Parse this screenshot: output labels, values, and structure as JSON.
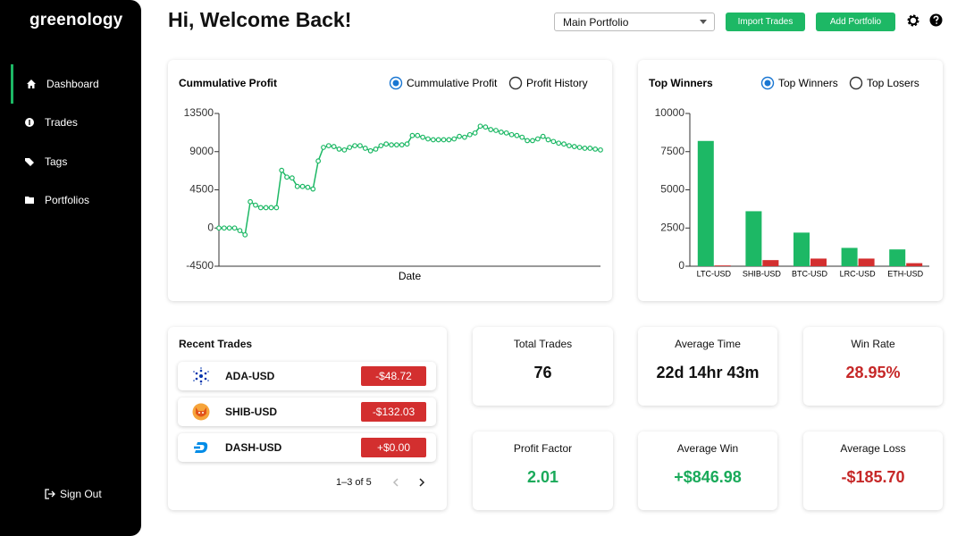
{
  "sidebar": {
    "brand": "greenology",
    "nav": [
      "Dashboard",
      "Trades",
      "Tags",
      "Portfolios"
    ],
    "active": 0,
    "sign_out": "Sign Out"
  },
  "header": {
    "title": "Hi, Welcome Back!",
    "portfolio_select": "Main Portfolio",
    "buttons": [
      "Import Trades",
      "Add Portfolio"
    ]
  },
  "chart_data": [
    {
      "type": "line",
      "title": "Cummulative Profit",
      "options": [
        "Cummulative Profit",
        "Profit History"
      ],
      "selected": 0,
      "xlabel": "Date",
      "color": "#1db865",
      "values": [
        0,
        0,
        0,
        0,
        -300,
        -800,
        3100,
        2700,
        2400,
        2400,
        2400,
        2400,
        6800,
        6000,
        5900,
        4900,
        4900,
        4800,
        4600,
        7900,
        9500,
        9700,
        9600,
        9300,
        9200,
        9500,
        9700,
        9700,
        9400,
        9100,
        9300,
        9700,
        9900,
        9800,
        9800,
        9800,
        9900,
        10900,
        10900,
        10700,
        10500,
        10400,
        10400,
        10400,
        10400,
        10500,
        10800,
        10700,
        11000,
        11200,
        12000,
        11900,
        11600,
        11500,
        11300,
        11200,
        11000,
        10900,
        10700,
        10300,
        10300,
        10500,
        10800,
        10400,
        10200,
        10000,
        9900,
        9700,
        9600,
        9500,
        9400,
        9400,
        9300,
        9200
      ],
      "ylim": [
        -4500,
        13500
      ],
      "yticks": [
        -4500,
        0,
        4500,
        9000,
        13500
      ]
    },
    {
      "type": "bar",
      "title": "Top Winners",
      "selected": 0,
      "categories": [
        "LTC-USD",
        "SHIB-USD",
        "BTC-USD",
        "LRC-USD",
        "ETH-USD"
      ],
      "series": [
        {
          "name": "Top Winners",
          "color": "#1db865",
          "values": [
            8200,
            3600,
            2200,
            1200,
            1100
          ]
        },
        {
          "name": "Top Losers",
          "color": "#d32f2f",
          "values": [
            50,
            400,
            500,
            500,
            200
          ]
        }
      ],
      "ylim": [
        0,
        10000
      ],
      "yticks": [
        0,
        2500,
        5000,
        7500,
        10000
      ]
    }
  ],
  "recent_trades": {
    "title": "Recent Trades",
    "rows": [
      {
        "symbol": "ADA-USD",
        "amount": "-$48.72"
      },
      {
        "symbol": "SHIB-USD",
        "amount": "-$132.03"
      },
      {
        "symbol": "DASH-USD",
        "amount": "+$0.00"
      }
    ],
    "pagination": "1–3 of 5"
  },
  "stats": [
    {
      "label": "Total Trades",
      "value": "76",
      "color": "#111111"
    },
    {
      "label": "Average Time",
      "value": "22d 14hr 43m",
      "color": "#111111"
    },
    {
      "label": "Win Rate",
      "value": "28.95%",
      "color": "#c62828"
    },
    {
      "label": "Profit Factor",
      "value": "2.01",
      "color": "#1aaa5a"
    },
    {
      "label": "Average Win",
      "value": "+$846.98",
      "color": "#1aaa5a"
    },
    {
      "label": "Average Loss",
      "value": "-$185.70",
      "color": "#c62828"
    }
  ]
}
